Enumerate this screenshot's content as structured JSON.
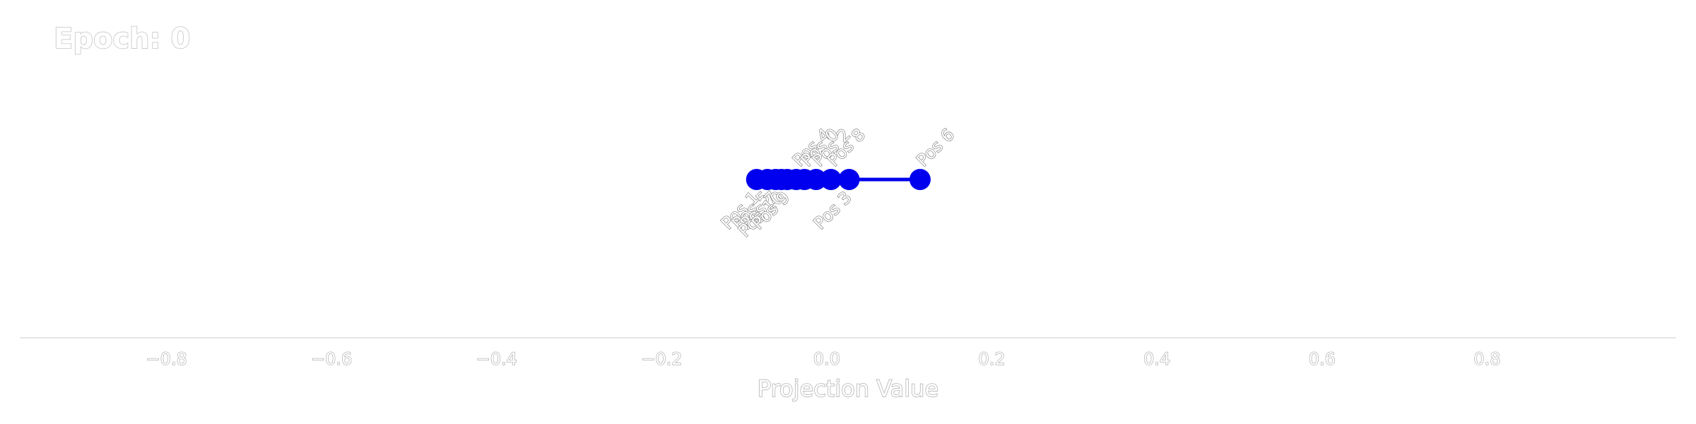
{
  "title": "Epoch: 0",
  "chart_data": {
    "type": "line",
    "xlabel": "Projection Value",
    "ylabel": "",
    "xlim": [
      -1.0,
      1.0
    ],
    "ylim": [
      -1.0,
      1.0
    ],
    "grid": false,
    "x_ticks": [
      -0.8,
      -0.6,
      -0.4,
      -0.2,
      0.0,
      0.2,
      0.4,
      0.6,
      0.8
    ],
    "x_tick_labels": [
      "−0.8",
      "−0.6",
      "−0.4",
      "−0.2",
      "0.0",
      "0.2",
      "0.4",
      "0.6",
      "0.8"
    ],
    "line_color": "#0000ee",
    "series": [
      {
        "points": [
          {
            "label": "Pos 1",
            "x": -0.085,
            "y": 0.0,
            "label_side": "below"
          },
          {
            "label": "Pos 5",
            "x": -0.072,
            "y": 0.0,
            "label_side": "below"
          },
          {
            "label": "Pos 7",
            "x": -0.062,
            "y": 0.0,
            "label_side": "below"
          },
          {
            "label": "Pos 10",
            "x": -0.055,
            "y": 0.0,
            "label_side": "below"
          },
          {
            "label": "Pos 9",
            "x": -0.048,
            "y": 0.0,
            "label_side": "below"
          },
          {
            "label": "Pos 4",
            "x": -0.037,
            "y": 0.0,
            "label_side": "above"
          },
          {
            "label": "Pos 0",
            "x": -0.027,
            "y": 0.0,
            "label_side": "above"
          },
          {
            "label": "Pos 2",
            "x": -0.013,
            "y": 0.0,
            "label_side": "above"
          },
          {
            "label": "Pos 8",
            "x": 0.005,
            "y": 0.0,
            "label_side": "above"
          },
          {
            "label": "Pos 3",
            "x": 0.027,
            "y": 0.0,
            "label_side": "below"
          },
          {
            "label": "Pos 6",
            "x": 0.113,
            "y": 0.0,
            "label_side": "above"
          }
        ]
      }
    ]
  }
}
